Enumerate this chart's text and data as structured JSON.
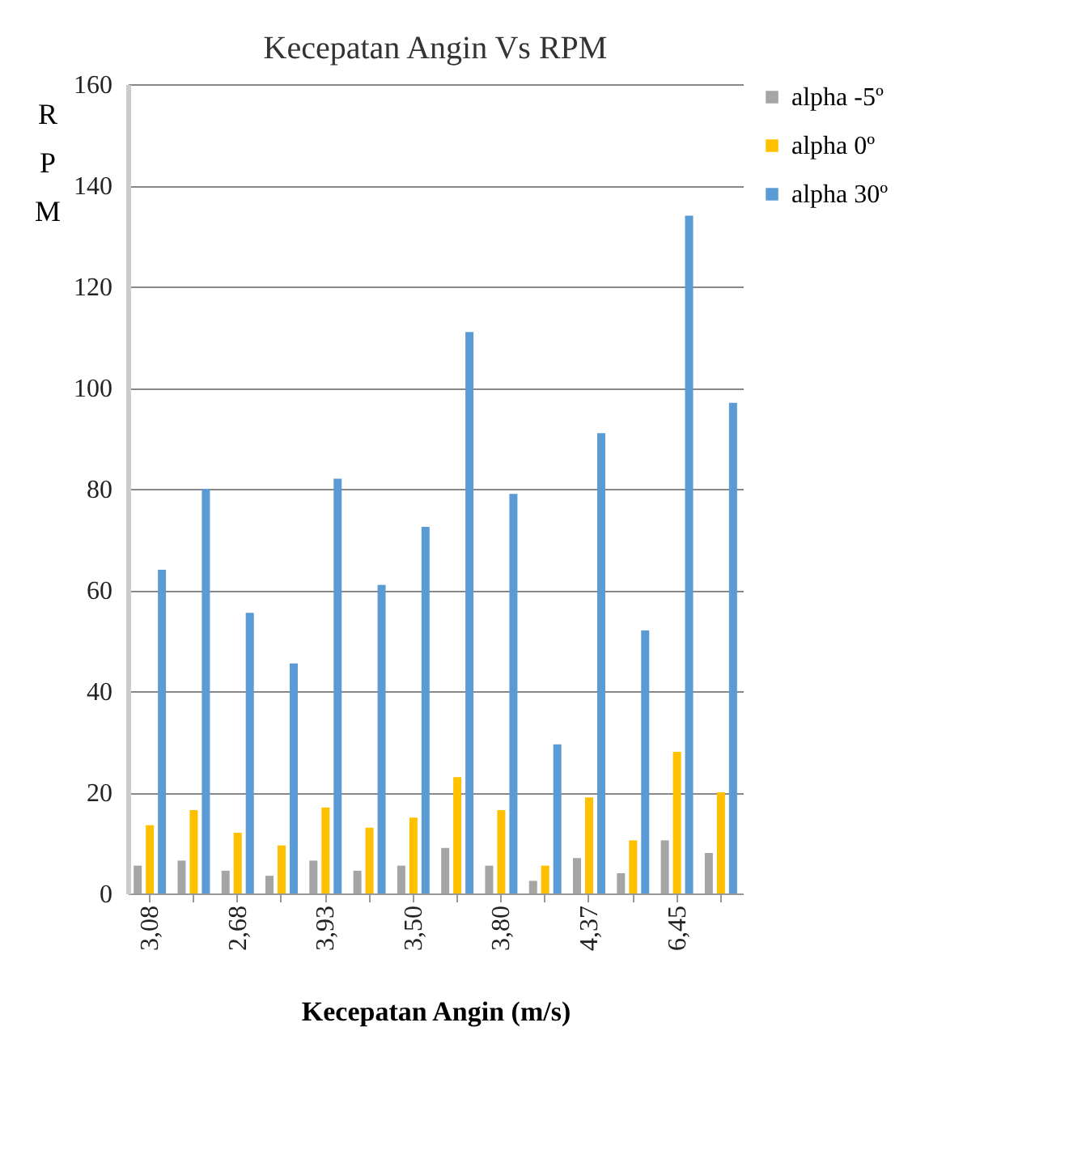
{
  "chart_data": {
    "type": "bar",
    "title": "Kecepatan Angin Vs RPM",
    "xlabel": "Kecepatan Angin (m/s)",
    "ylabel": "RPM",
    "categories": [
      "3,08",
      null,
      "2,68",
      null,
      "3,93",
      null,
      "3,50",
      null,
      "3,80",
      null,
      "4,37",
      null,
      "6,45",
      null
    ],
    "series": [
      {
        "name": "alpha -5º",
        "color": "#a5a5a5",
        "values": [
          5.5,
          6.5,
          4.5,
          3.5,
          6.5,
          4.5,
          5.5,
          9,
          5.5,
          2.5,
          7,
          4,
          10.5,
          8
        ]
      },
      {
        "name": "alpha 0º",
        "color": "#ffc000",
        "values": [
          13.5,
          16.5,
          12,
          9.5,
          17,
          13,
          15,
          23,
          16.5,
          5.5,
          19,
          10.5,
          28,
          20
        ]
      },
      {
        "name": "alpha 30º",
        "color": "#5b9bd5",
        "values": [
          64,
          80,
          55.5,
          45.5,
          82,
          61,
          72.5,
          111,
          79,
          29.5,
          91,
          52,
          134,
          97
        ]
      }
    ],
    "ylim": [
      0,
      160
    ],
    "yticks": [
      0,
      20,
      40,
      60,
      80,
      100,
      120,
      140,
      160
    ],
    "grid": "y",
    "legend": "right"
  }
}
